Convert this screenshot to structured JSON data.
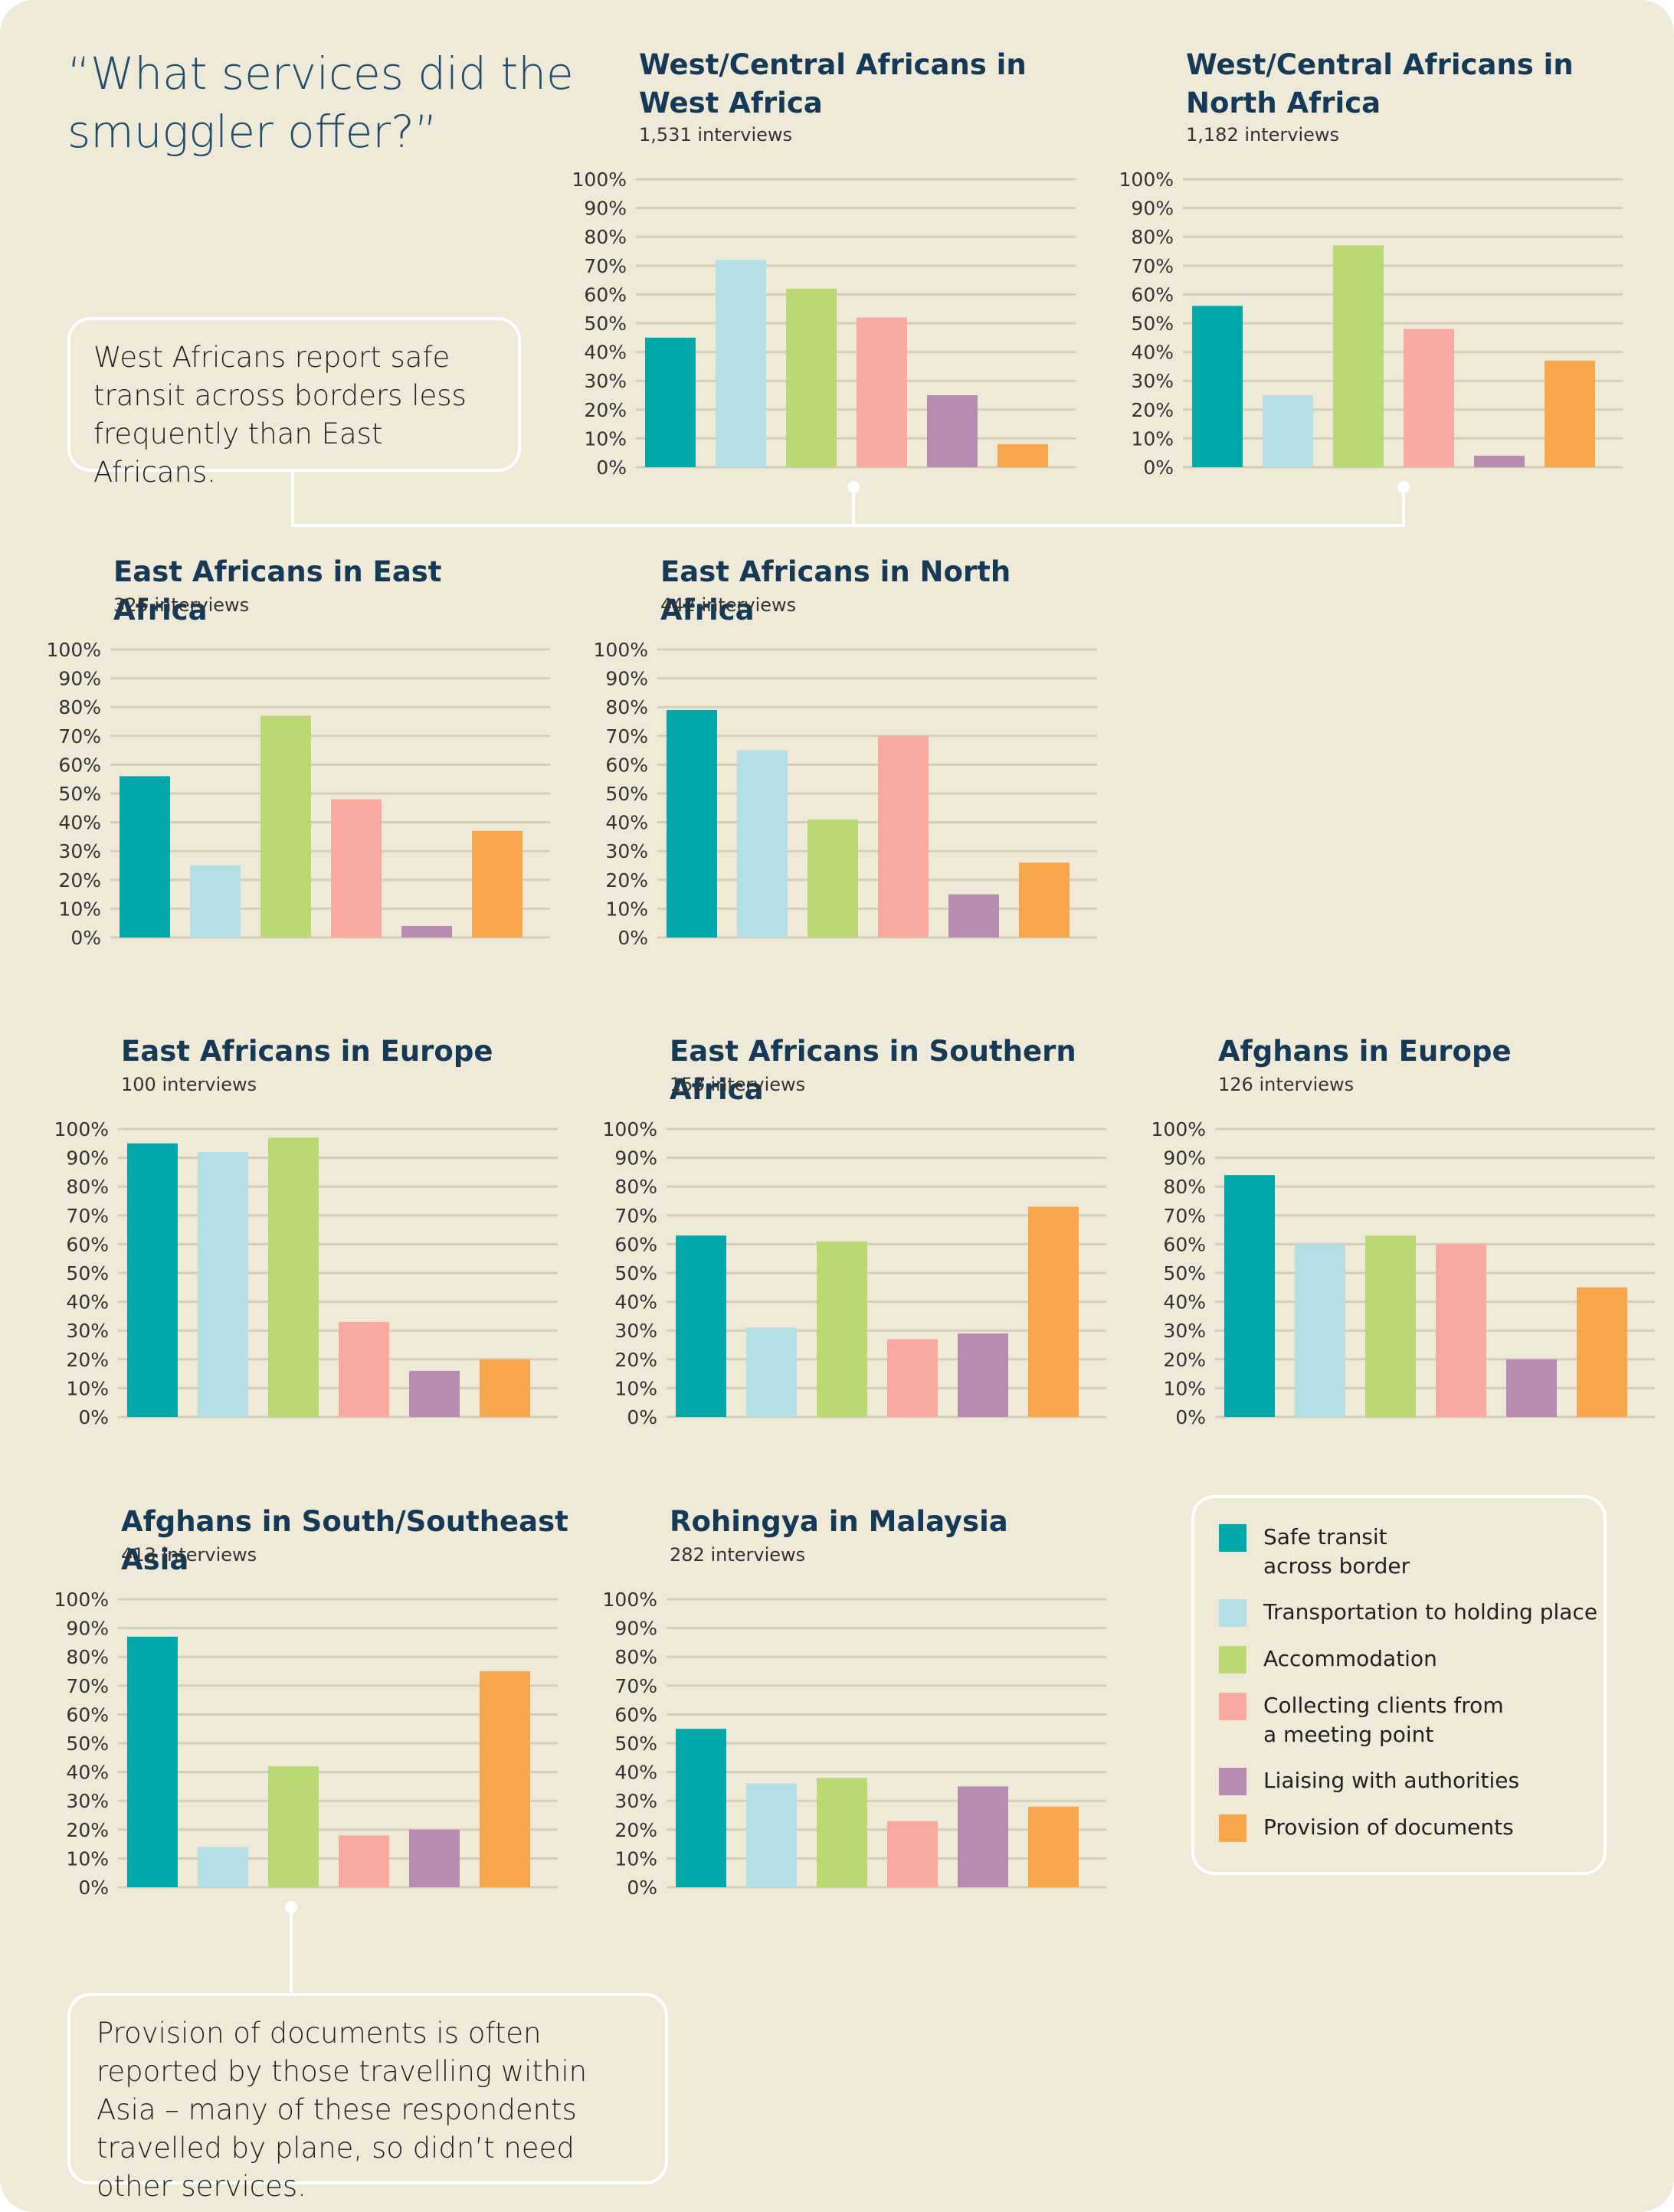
{
  "main_title": "“What services did the smuggler offer?”",
  "colors": {
    "background": "#efe9d8",
    "series": [
      "#00a8aa",
      "#b3dfe5",
      "#bad873",
      "#f9a99f",
      "#b88cb0",
      "#f8a64b"
    ]
  },
  "legend": {
    "items": [
      {
        "label": "Safe transit\nacross border",
        "color": "#00a8aa"
      },
      {
        "label": "Transportation to holding place",
        "color": "#b3dfe5"
      },
      {
        "label": "Accommodation",
        "color": "#bad873"
      },
      {
        "label": "Collecting clients from\na meeting point",
        "color": "#f9a99f"
      },
      {
        "label": "Liaising with authorities",
        "color": "#b88cb0"
      },
      {
        "label": "Provision of documents",
        "color": "#f8a64b"
      }
    ]
  },
  "callouts": {
    "west_africans": "West Africans report safe transit across borders less frequently than East Africans.",
    "documents": "Provision of documents is often reported by those travelling within Asia – many of these respondents travelled by plane, so didn’t need other services."
  },
  "chart_data": [
    {
      "type": "bar",
      "title": "West/Central Africans in\nWest Africa",
      "subtitle": "1,531 interviews",
      "categories": [
        "Safe transit across border",
        "Transportation to holding place",
        "Accommodation",
        "Collecting clients from a meeting point",
        "Liaising with authorities",
        "Provision of documents"
      ],
      "values": [
        45,
        72,
        62,
        52,
        25,
        8
      ],
      "ylim": [
        0,
        100
      ],
      "yticks": [
        "0%",
        "10%",
        "20%",
        "30%",
        "40%",
        "50%",
        "60%",
        "70%",
        "80%",
        "90%",
        "100%"
      ]
    },
    {
      "type": "bar",
      "title": "West/Central Africans in\nNorth Africa",
      "subtitle": "1,182 interviews",
      "categories": [
        "Safe transit across border",
        "Transportation to holding place",
        "Accommodation",
        "Collecting clients from a meeting point",
        "Liaising with authorities",
        "Provision of documents"
      ],
      "values": [
        56,
        25,
        77,
        48,
        4,
        37
      ],
      "ylim": [
        0,
        100
      ],
      "yticks": [
        "0%",
        "10%",
        "20%",
        "30%",
        "40%",
        "50%",
        "60%",
        "70%",
        "80%",
        "90%",
        "100%"
      ]
    },
    {
      "type": "bar",
      "title": "East Africans in East Africa",
      "subtitle": "325 interviews",
      "categories": [
        "Safe transit across border",
        "Transportation to holding place",
        "Accommodation",
        "Collecting clients from a meeting point",
        "Liaising with authorities",
        "Provision of documents"
      ],
      "values": [
        56,
        25,
        77,
        48,
        4,
        37
      ],
      "ylim": [
        0,
        100
      ],
      "yticks": [
        "0%",
        "10%",
        "20%",
        "30%",
        "40%",
        "50%",
        "60%",
        "70%",
        "80%",
        "90%",
        "100%"
      ]
    },
    {
      "type": "bar",
      "title": "East Africans in North Africa",
      "subtitle": "442 interviews",
      "categories": [
        "Safe transit across border",
        "Transportation to holding place",
        "Accommodation",
        "Collecting clients from a meeting point",
        "Liaising with authorities",
        "Provision of documents"
      ],
      "values": [
        79,
        65,
        41,
        70,
        15,
        26
      ],
      "ylim": [
        0,
        100
      ],
      "yticks": [
        "0%",
        "10%",
        "20%",
        "30%",
        "40%",
        "50%",
        "60%",
        "70%",
        "80%",
        "90%",
        "100%"
      ]
    },
    {
      "type": "bar",
      "title": "East Africans in Europe",
      "subtitle": "100 interviews",
      "categories": [
        "Safe transit across border",
        "Transportation to holding place",
        "Accommodation",
        "Collecting clients from a meeting point",
        "Liaising with authorities",
        "Provision of documents"
      ],
      "values": [
        95,
        92,
        97,
        33,
        16,
        20
      ],
      "ylim": [
        0,
        100
      ],
      "yticks": [
        "0%",
        "10%",
        "20%",
        "30%",
        "40%",
        "50%",
        "60%",
        "70%",
        "80%",
        "90%",
        "100%"
      ]
    },
    {
      "type": "bar",
      "title": "East Africans in Southern Africa",
      "subtitle": "153 interviews",
      "categories": [
        "Safe transit across border",
        "Transportation to holding place",
        "Accommodation",
        "Collecting clients from a meeting point",
        "Liaising with authorities",
        "Provision of documents"
      ],
      "values": [
        63,
        31,
        61,
        27,
        29,
        73
      ],
      "ylim": [
        0,
        100
      ],
      "yticks": [
        "0%",
        "10%",
        "20%",
        "30%",
        "40%",
        "50%",
        "60%",
        "70%",
        "80%",
        "90%",
        "100%"
      ]
    },
    {
      "type": "bar",
      "title": "Afghans in Europe",
      "subtitle": "126 interviews",
      "categories": [
        "Safe transit across border",
        "Transportation to holding place",
        "Accommodation",
        "Collecting clients from a meeting point",
        "Liaising with authorities",
        "Provision of documents"
      ],
      "values": [
        84,
        60,
        63,
        60,
        20,
        45
      ],
      "ylim": [
        0,
        100
      ],
      "yticks": [
        "0%",
        "10%",
        "20%",
        "30%",
        "40%",
        "50%",
        "60%",
        "70%",
        "80%",
        "90%",
        "100%"
      ]
    },
    {
      "type": "bar",
      "title": "Afghans in South/Southeast Asia",
      "subtitle": "413 interviews",
      "categories": [
        "Safe transit across border",
        "Transportation to holding place",
        "Accommodation",
        "Collecting clients from a meeting point",
        "Liaising with authorities",
        "Provision of documents"
      ],
      "values": [
        87,
        14,
        42,
        18,
        20,
        75
      ],
      "ylim": [
        0,
        100
      ],
      "yticks": [
        "0%",
        "10%",
        "20%",
        "30%",
        "40%",
        "50%",
        "60%",
        "70%",
        "80%",
        "90%",
        "100%"
      ]
    },
    {
      "type": "bar",
      "title": "Rohingya in Malaysia",
      "subtitle": "282 interviews",
      "categories": [
        "Safe transit across border",
        "Transportation to holding place",
        "Accommodation",
        "Collecting clients from a meeting point",
        "Liaising with authorities",
        "Provision of documents"
      ],
      "values": [
        55,
        36,
        38,
        23,
        35,
        28
      ],
      "ylim": [
        0,
        100
      ],
      "yticks": [
        "0%",
        "10%",
        "20%",
        "30%",
        "40%",
        "50%",
        "60%",
        "70%",
        "80%",
        "90%",
        "100%"
      ]
    }
  ]
}
